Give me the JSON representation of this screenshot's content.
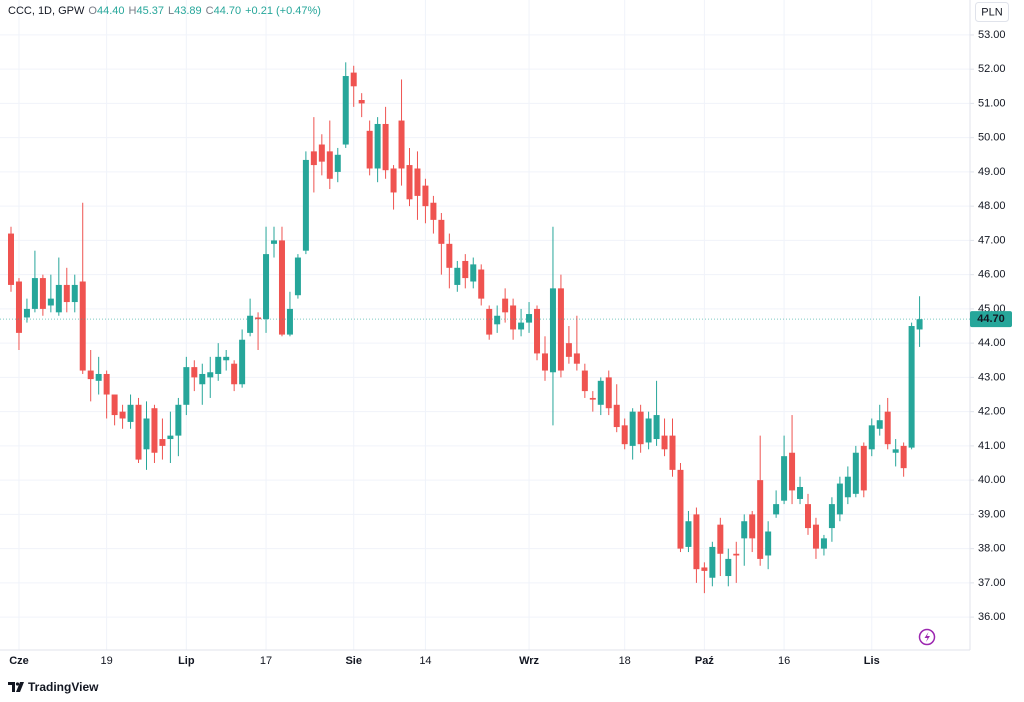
{
  "header": {
    "symbol": "CCC, 1D, GPW",
    "ohlc": [
      {
        "label": "O",
        "value": "44.40"
      },
      {
        "label": "H",
        "value": "45.37"
      },
      {
        "label": "L",
        "value": "43.89"
      },
      {
        "label": "C",
        "value": "44.70"
      }
    ],
    "change": "+0.21 (+0.47%)",
    "currency": "PLN"
  },
  "footer": {
    "brand": "TradingView"
  },
  "chart_data": {
    "type": "candlestick",
    "up_color": "#26a69a",
    "down_color": "#ef5350",
    "grid": true,
    "price_label": "44.70",
    "categories": [
      null,
      "Cze",
      null,
      null,
      null,
      null,
      null,
      null,
      null,
      null,
      null,
      null,
      "19",
      null,
      null,
      null,
      null,
      null,
      null,
      null,
      null,
      null,
      "Lip",
      null,
      null,
      null,
      null,
      null,
      null,
      null,
      null,
      null,
      "17",
      null,
      null,
      null,
      null,
      null,
      null,
      null,
      null,
      null,
      null,
      "Sie",
      null,
      null,
      null,
      null,
      null,
      null,
      null,
      null,
      "14",
      null,
      null,
      null,
      null,
      null,
      null,
      null,
      null,
      null,
      null,
      null,
      null,
      "Wrz",
      null,
      null,
      null,
      null,
      null,
      null,
      null,
      null,
      null,
      null,
      null,
      "18",
      null,
      null,
      null,
      null,
      null,
      null,
      null,
      null,
      null,
      "Paź",
      null,
      null,
      null,
      null,
      null,
      null,
      null,
      null,
      null,
      "16",
      null,
      null,
      null,
      null,
      null,
      null,
      null,
      null,
      null,
      null,
      "Lis",
      null,
      null,
      null,
      null,
      null,
      null
    ],
    "open": [
      47.2,
      45.8,
      44.75,
      45.0,
      45.9,
      45.1,
      44.9,
      45.7,
      45.2,
      45.8,
      43.2,
      42.9,
      43.1,
      42.5,
      42.0,
      41.7,
      42.2,
      40.9,
      42.1,
      41.2,
      41.2,
      41.3,
      42.2,
      43.3,
      42.8,
      43.0,
      43.1,
      43.5,
      43.4,
      42.8,
      44.3,
      44.75,
      44.7,
      46.9,
      47.0,
      44.25,
      45.4,
      46.7,
      49.6,
      49.8,
      49.6,
      49.0,
      49.8,
      51.9,
      51.1,
      50.2,
      49.1,
      50.4,
      49.1,
      50.5,
      49.2,
      49.1,
      48.6,
      48.1,
      47.6,
      46.9,
      45.7,
      46.4,
      45.8,
      46.15,
      45.0,
      44.55,
      45.3,
      45.1,
      44.4,
      44.6,
      45.0,
      43.7,
      43.15,
      45.6,
      44.0,
      43.7,
      43.2,
      42.4,
      42.2,
      43.0,
      42.2,
      41.6,
      41.0,
      42.0,
      41.1,
      41.2,
      41.3,
      41.3,
      40.3,
      38.05,
      39.0,
      37.45,
      37.15,
      38.7,
      37.2,
      37.85,
      38.3,
      39.0,
      40.0,
      37.8,
      39.0,
      39.4,
      40.8,
      39.45,
      39.3,
      38.7,
      38.0,
      38.6,
      39.0,
      39.5,
      39.6,
      41.0,
      40.9,
      41.5,
      42.0,
      40.8,
      41.0,
      40.95,
      44.4
    ],
    "high": [
      47.4,
      45.9,
      45.3,
      46.7,
      46.0,
      46.0,
      46.5,
      46.2,
      46.0,
      48.1,
      43.8,
      43.6,
      43.2,
      42.5,
      42.2,
      42.5,
      42.4,
      42.3,
      42.2,
      41.8,
      42.0,
      42.4,
      43.6,
      43.5,
      43.4,
      43.6,
      44.0,
      43.8,
      43.5,
      44.4,
      45.3,
      44.9,
      47.4,
      47.4,
      47.4,
      45.5,
      46.6,
      49.6,
      50.6,
      50.1,
      50.5,
      49.7,
      52.2,
      52.1,
      51.3,
      50.5,
      50.6,
      50.9,
      49.2,
      51.7,
      49.7,
      49.6,
      48.8,
      48.3,
      47.8,
      47.2,
      46.4,
      46.6,
      46.5,
      46.3,
      45.1,
      45.1,
      45.6,
      45.3,
      45.0,
      45.2,
      45.1,
      44.2,
      47.4,
      46.0,
      44.5,
      44.8,
      43.4,
      42.6,
      43.0,
      43.2,
      42.8,
      41.8,
      42.1,
      42.2,
      42.0,
      42.9,
      41.8,
      41.8,
      40.5,
      39.1,
      39.2,
      37.6,
      38.2,
      38.9,
      38.0,
      38.2,
      39.0,
      39.1,
      41.3,
      38.8,
      39.7,
      41.3,
      41.9,
      40.1,
      39.6,
      38.9,
      38.4,
      39.5,
      40.1,
      40.4,
      41.0,
      41.1,
      41.8,
      42.2,
      42.4,
      41.2,
      41.1,
      44.6,
      45.37
    ],
    "low": [
      45.5,
      43.8,
      44.6,
      44.9,
      44.8,
      44.9,
      44.8,
      44.9,
      44.9,
      43.1,
      42.3,
      42.5,
      41.8,
      41.6,
      41.5,
      41.5,
      40.5,
      40.3,
      40.5,
      40.6,
      40.5,
      40.7,
      41.9,
      42.6,
      42.2,
      42.4,
      42.9,
      43.2,
      42.6,
      42.7,
      44.2,
      43.8,
      44.3,
      46.5,
      44.2,
      44.2,
      45.3,
      46.6,
      48.4,
      48.9,
      48.5,
      48.7,
      49.7,
      50.9,
      50.6,
      48.9,
      48.7,
      48.8,
      47.9,
      48.6,
      48.0,
      47.6,
      47.5,
      47.2,
      46.0,
      45.6,
      45.5,
      45.6,
      45.6,
      45.1,
      44.1,
      44.3,
      44.6,
      44.1,
      44.2,
      44.3,
      43.5,
      42.9,
      41.6,
      43.0,
      43.4,
      43.2,
      42.4,
      42.0,
      41.9,
      41.9,
      41.4,
      40.9,
      40.6,
      40.8,
      40.9,
      41.0,
      40.7,
      40.1,
      37.9,
      37.9,
      37.0,
      36.7,
      36.9,
      37.2,
      36.9,
      37.0,
      37.5,
      37.9,
      37.5,
      37.4,
      38.9,
      39.3,
      39.3,
      39.3,
      38.4,
      37.7,
      37.8,
      38.2,
      38.8,
      39.3,
      39.5,
      39.5,
      40.7,
      41.3,
      40.9,
      40.4,
      40.1,
      40.9,
      43.89
    ],
    "close": [
      45.7,
      44.3,
      45.0,
      45.9,
      45.0,
      45.3,
      45.7,
      45.2,
      45.7,
      43.2,
      42.95,
      43.1,
      42.5,
      41.9,
      41.8,
      42.2,
      40.6,
      41.8,
      40.8,
      41.0,
      41.3,
      42.2,
      43.3,
      43.0,
      43.1,
      43.15,
      43.6,
      43.6,
      42.8,
      44.1,
      44.8,
      44.7,
      46.6,
      47.0,
      44.25,
      45.0,
      46.5,
      49.35,
      49.2,
      49.3,
      48.8,
      49.5,
      51.8,
      51.5,
      51.0,
      49.1,
      50.4,
      49.05,
      48.4,
      49.1,
      48.2,
      48.3,
      48.0,
      47.6,
      46.9,
      46.2,
      46.2,
      45.9,
      46.3,
      45.3,
      44.25,
      44.8,
      44.9,
      44.4,
      44.6,
      44.85,
      43.7,
      43.2,
      45.6,
      43.2,
      43.6,
      43.4,
      42.6,
      42.35,
      42.9,
      42.1,
      41.55,
      41.05,
      42.0,
      41.05,
      41.8,
      41.9,
      40.9,
      40.3,
      38.0,
      38.8,
      37.4,
      37.35,
      38.05,
      37.85,
      37.7,
      37.8,
      38.8,
      38.3,
      37.7,
      38.5,
      39.3,
      40.7,
      39.7,
      39.8,
      38.6,
      38.0,
      38.3,
      39.3,
      39.9,
      40.1,
      40.8,
      39.7,
      41.6,
      41.75,
      41.05,
      40.9,
      40.35,
      44.5,
      44.7
    ],
    "ylim": [
      35.04,
      54.02
    ],
    "yticks": [
      {
        "value": 36,
        "label": "36.00"
      },
      {
        "value": 37,
        "label": "37.00"
      },
      {
        "value": 38,
        "label": "38.00"
      },
      {
        "value": 39,
        "label": "39.00"
      },
      {
        "value": 40,
        "label": "40.00"
      },
      {
        "value": 41,
        "label": "41.00"
      },
      {
        "value": 42,
        "label": "42.00"
      },
      {
        "value": 43,
        "label": "43.00"
      },
      {
        "value": 44,
        "label": "44.00"
      },
      {
        "value": 45,
        "label": "45.00"
      },
      {
        "value": 46,
        "label": "46.00"
      },
      {
        "value": 47,
        "label": "47.00"
      },
      {
        "value": 48,
        "label": "48.00"
      },
      {
        "value": 49,
        "label": "49.00"
      },
      {
        "value": 50,
        "label": "50.00"
      },
      {
        "value": 51,
        "label": "51.00"
      },
      {
        "value": 52,
        "label": "52.00"
      },
      {
        "value": 53,
        "label": "53.00"
      }
    ]
  }
}
